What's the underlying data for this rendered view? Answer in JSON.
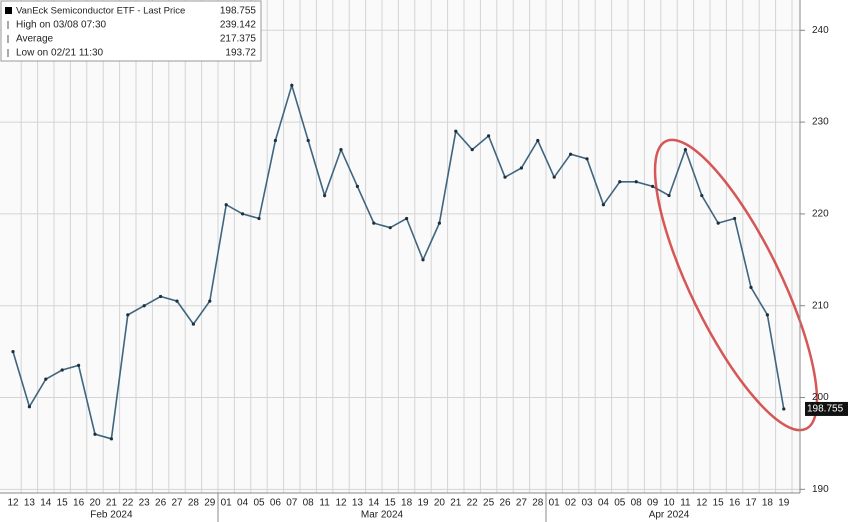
{
  "chart_data": {
    "type": "line",
    "title": "VanEck Semiconductor ETF - Last Price",
    "color": "#3f6680",
    "categories": [
      "12",
      "13",
      "14",
      "15",
      "16",
      "20",
      "21",
      "22",
      "23",
      "26",
      "27",
      "28",
      "29",
      "01",
      "04",
      "05",
      "06",
      "07",
      "08",
      "11",
      "12",
      "13",
      "14",
      "15",
      "18",
      "19",
      "20",
      "21",
      "22",
      "25",
      "26",
      "27",
      "28",
      "01",
      "02",
      "03",
      "04",
      "05",
      "08",
      "09",
      "10",
      "11",
      "12",
      "15",
      "16",
      "17",
      "18",
      "19"
    ],
    "months": [
      "Feb 2024",
      "Mar 2024",
      "Apr 2024"
    ],
    "values": [
      205,
      199,
      202,
      203,
      203.5,
      196,
      195.5,
      209,
      210,
      211,
      210.5,
      208,
      210.5,
      221,
      220,
      219.5,
      228,
      234,
      228,
      222,
      227,
      223,
      219,
      218.5,
      219.5,
      215,
      219,
      229,
      227,
      228.5,
      224,
      225,
      228,
      224,
      226.5,
      226,
      221,
      223.5,
      223.5,
      223,
      222,
      227,
      222,
      219,
      219.5,
      212,
      209,
      198.755
    ],
    "ylim": [
      189.6,
      243.3
    ],
    "yticks": [
      190,
      200,
      210,
      220,
      230,
      240
    ],
    "grid": true,
    "legend": [
      {
        "label": "VanEck Semiconductor ETF - Last Price",
        "value": 198.755
      },
      {
        "label": "High on 03/08 07:30",
        "value": 239.142
      },
      {
        "label": "Average",
        "value": 217.375
      },
      {
        "label": "Low on 02/21 11:30",
        "value": 193.72
      }
    ]
  }
}
